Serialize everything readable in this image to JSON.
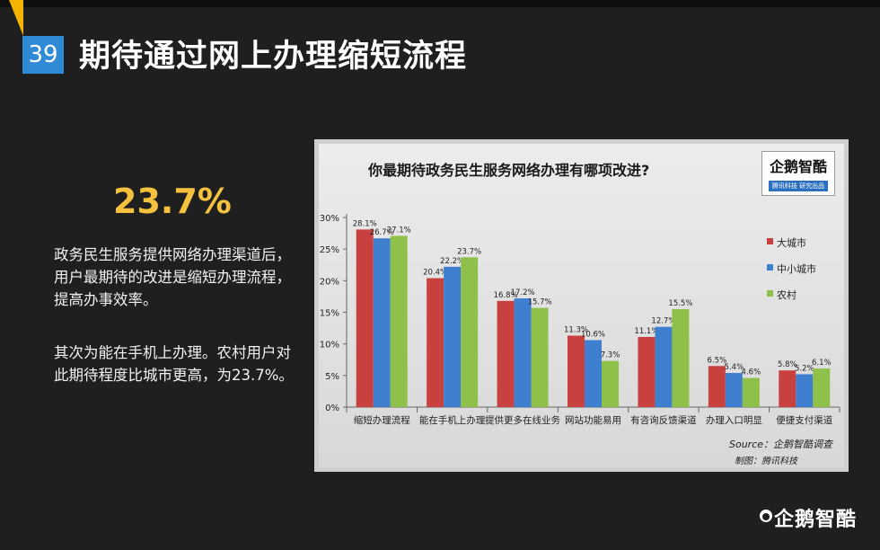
{
  "slide": {
    "number": "39",
    "title": "期待通过网上办理缩短流程",
    "highlight": "23.7%",
    "paragraph1": "政务民生服务提供网络办理渠道后，用户最期待的改进是缩短办理流程，提高办事效率。",
    "paragraph2": "其次为能在手机上办理。农村用户对此期待程度比城市更高，为23.7%。",
    "brand": "企鹅智酷"
  },
  "badge": {
    "main": "企鹅智酷",
    "sub": "腾讯科技 研究出品"
  },
  "colors": {
    "city": "#c8413f",
    "smallcity": "#3f7fcf",
    "rural": "#8ec04a",
    "accent": "#2f8bd6",
    "highlight": "#f6c23e"
  },
  "chart_data": {
    "type": "bar",
    "title": "你最期待政务民生服务网络办理有哪项改进?",
    "categories": [
      "缩短办理流程",
      "能在手机上办理",
      "提供更多在线业务",
      "网站功能易用",
      "有咨询反馈渠道",
      "办理入口明显",
      "便捷支付渠道"
    ],
    "series": [
      {
        "name": "大城市",
        "values": [
          28.1,
          20.4,
          16.8,
          11.3,
          11.1,
          6.5,
          5.8
        ],
        "labels": [
          "28.1%",
          "20.4%",
          "16.8%",
          "11.3%",
          "11.1%",
          "6.5%",
          "5.8%"
        ]
      },
      {
        "name": "中小城市",
        "values": [
          26.7,
          22.2,
          17.2,
          10.6,
          12.7,
          5.4,
          5.2
        ],
        "labels": [
          "26.7%",
          "22.2%",
          "17.2%",
          "10.6%",
          "12.7%",
          "5.4%",
          "5.2%"
        ]
      },
      {
        "name": "农村",
        "values": [
          27.1,
          23.7,
          15.7,
          7.3,
          15.5,
          4.6,
          6.1
        ],
        "labels": [
          "27.1%",
          "23.7%",
          "15.7%",
          "7.3%",
          "15.5%",
          "4.6%",
          "6.1%"
        ]
      }
    ],
    "y_ticks": [
      "0%",
      "5%",
      "10%",
      "15%",
      "20%",
      "25%",
      "30%"
    ],
    "ylim": [
      0,
      30
    ],
    "grid": false,
    "legend_position": "right",
    "source": "Source：企鹅智酷调查",
    "maker": "制图：腾讯科技"
  }
}
